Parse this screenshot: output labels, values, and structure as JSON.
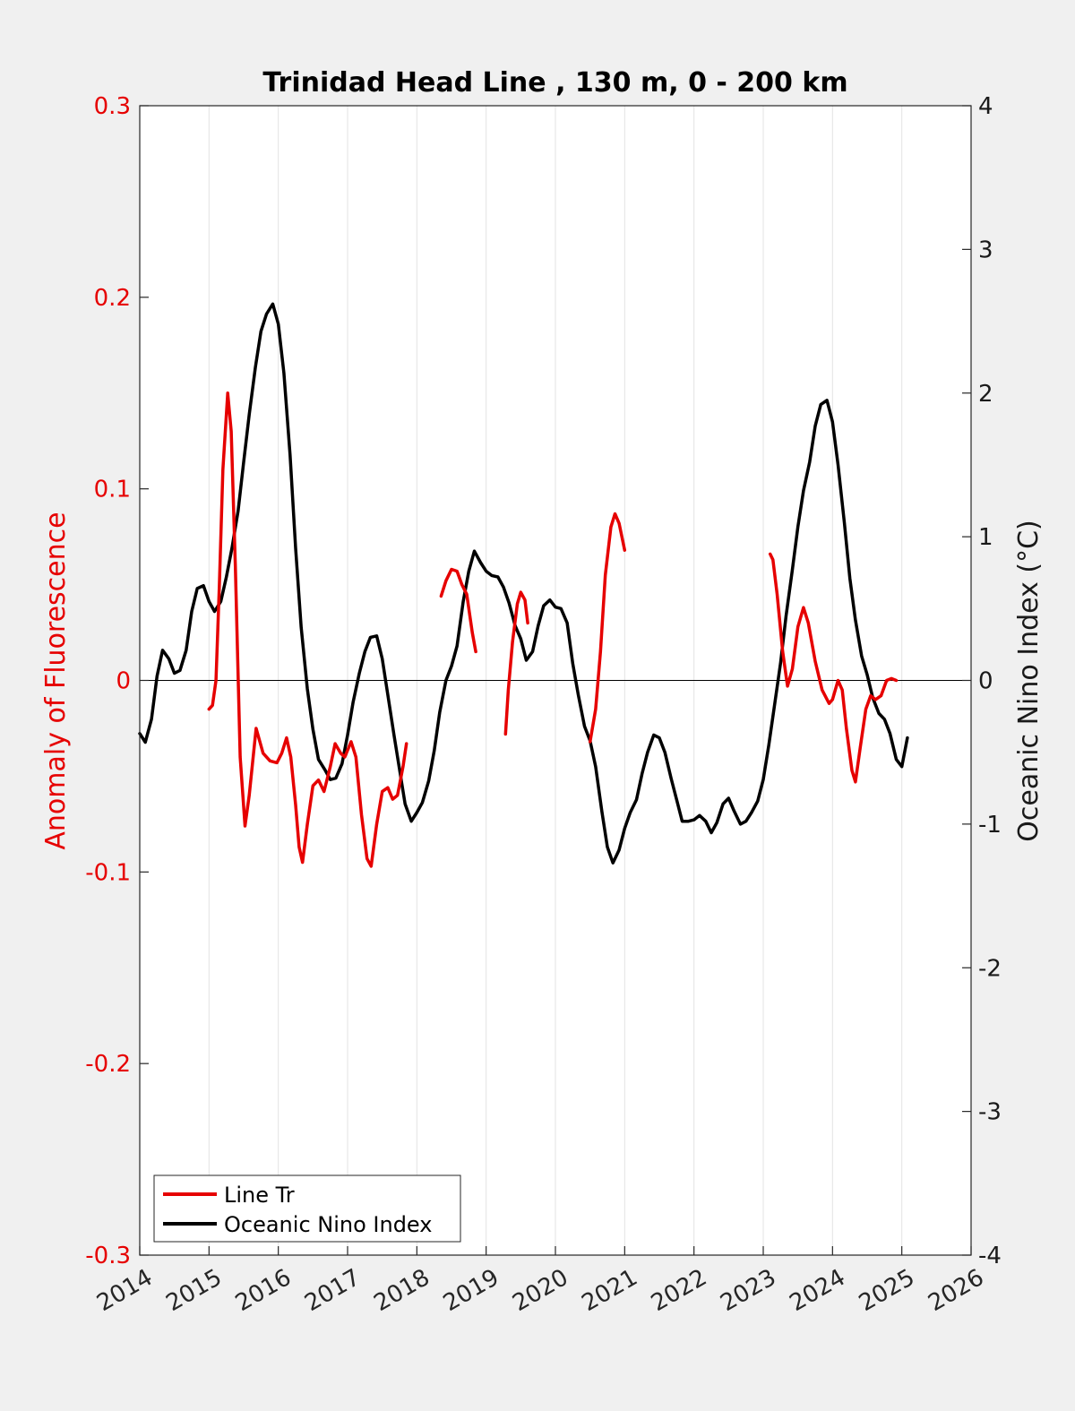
{
  "chart_data": {
    "type": "line",
    "title": "Trinidad Head Line , 130 m, 0 - 200 km",
    "xlabel": "",
    "ylabel_left": "Anomaly of Fluorescence",
    "ylabel_right": "Oceanic Nino Index (°C)",
    "xlim": [
      2014,
      2026
    ],
    "ylim_left": [
      -0.3,
      0.3
    ],
    "ylim_right": [
      -4,
      4
    ],
    "x_ticks": [
      "2014",
      "2015",
      "2016",
      "2017",
      "2018",
      "2019",
      "2020",
      "2021",
      "2022",
      "2023",
      "2024",
      "2025",
      "2026"
    ],
    "y_left_ticks": [
      "-0.3",
      "-0.2",
      "-0.1",
      "0",
      "0.1",
      "0.2",
      "0.3"
    ],
    "y_right_ticks": [
      "-4",
      "-3",
      "-2",
      "-1",
      "0",
      "1",
      "2",
      "3",
      "4"
    ],
    "grid": "vertical x-grid on",
    "zero_line": true,
    "legend": {
      "placement": "bottom-left",
      "entries": [
        "Line Tr",
        "Oceanic Nino Index"
      ]
    },
    "colors": {
      "line_tr": "#e60000",
      "oni": "#000000",
      "left_axis": "#e60000",
      "right_axis": "#1a1a1a"
    },
    "series": [
      {
        "name": "Line Tr",
        "axis": "left",
        "segments": [
          [
            [
              2015.0,
              -0.015
            ],
            [
              2015.05,
              -0.013
            ],
            [
              2015.1,
              0.0
            ],
            [
              2015.15,
              0.05
            ],
            [
              2015.2,
              0.11
            ],
            [
              2015.27,
              0.15
            ],
            [
              2015.32,
              0.13
            ],
            [
              2015.38,
              0.06
            ],
            [
              2015.45,
              -0.04
            ],
            [
              2015.52,
              -0.076
            ],
            [
              2015.58,
              -0.06
            ],
            [
              2015.68,
              -0.025
            ],
            [
              2015.78,
              -0.038
            ],
            [
              2015.88,
              -0.042
            ],
            [
              2015.98,
              -0.043
            ],
            [
              2016.05,
              -0.038
            ],
            [
              2016.12,
              -0.03
            ],
            [
              2016.18,
              -0.04
            ],
            [
              2016.25,
              -0.065
            ],
            [
              2016.3,
              -0.087
            ],
            [
              2016.35,
              -0.095
            ],
            [
              2016.42,
              -0.075
            ],
            [
              2016.5,
              -0.055
            ],
            [
              2016.58,
              -0.052
            ],
            [
              2016.66,
              -0.058
            ],
            [
              2016.75,
              -0.045
            ],
            [
              2016.82,
              -0.033
            ],
            [
              2016.9,
              -0.038
            ],
            [
              2016.96,
              -0.04
            ],
            [
              2017.05,
              -0.032
            ],
            [
              2017.12,
              -0.04
            ],
            [
              2017.2,
              -0.07
            ],
            [
              2017.28,
              -0.093
            ],
            [
              2017.34,
              -0.097
            ],
            [
              2017.42,
              -0.075
            ],
            [
              2017.5,
              -0.058
            ],
            [
              2017.58,
              -0.056
            ],
            [
              2017.65,
              -0.062
            ],
            [
              2017.72,
              -0.06
            ],
            [
              2017.8,
              -0.045
            ],
            [
              2017.85,
              -0.033
            ]
          ],
          [
            [
              2018.35,
              0.044
            ],
            [
              2018.42,
              0.052
            ],
            [
              2018.5,
              0.058
            ],
            [
              2018.58,
              0.057
            ],
            [
              2018.65,
              0.05
            ],
            [
              2018.72,
              0.045
            ],
            [
              2018.8,
              0.025
            ],
            [
              2018.85,
              0.015
            ]
          ],
          [
            [
              2019.28,
              -0.028
            ],
            [
              2019.32,
              -0.005
            ],
            [
              2019.38,
              0.02
            ],
            [
              2019.45,
              0.04
            ],
            [
              2019.5,
              0.046
            ],
            [
              2019.56,
              0.042
            ],
            [
              2019.6,
              0.03
            ]
          ],
          [
            [
              2020.5,
              -0.032
            ],
            [
              2020.58,
              -0.015
            ],
            [
              2020.65,
              0.015
            ],
            [
              2020.72,
              0.055
            ],
            [
              2020.8,
              0.08
            ],
            [
              2020.86,
              0.087
            ],
            [
              2020.92,
              0.082
            ],
            [
              2021.0,
              0.068
            ]
          ],
          [
            [
              2023.1,
              0.066
            ],
            [
              2023.14,
              0.063
            ],
            [
              2023.2,
              0.045
            ],
            [
              2023.28,
              0.015
            ],
            [
              2023.35,
              -0.003
            ],
            [
              2023.42,
              0.006
            ],
            [
              2023.5,
              0.028
            ],
            [
              2023.58,
              0.038
            ],
            [
              2023.65,
              0.03
            ],
            [
              2023.75,
              0.01
            ],
            [
              2023.85,
              -0.005
            ],
            [
              2023.95,
              -0.012
            ],
            [
              2024.0,
              -0.01
            ],
            [
              2024.08,
              0.0
            ],
            [
              2024.14,
              -0.005
            ],
            [
              2024.2,
              -0.025
            ],
            [
              2024.28,
              -0.047
            ],
            [
              2024.33,
              -0.053
            ],
            [
              2024.4,
              -0.035
            ],
            [
              2024.48,
              -0.015
            ],
            [
              2024.55,
              -0.008
            ],
            [
              2024.62,
              -0.01
            ],
            [
              2024.7,
              -0.008
            ],
            [
              2024.78,
              0.0
            ],
            [
              2024.85,
              0.001
            ],
            [
              2024.92,
              0.0
            ]
          ]
        ]
      },
      {
        "name": "Oceanic Nino Index",
        "axis": "right",
        "segments": [
          [
            [
              2014.0,
              -0.37
            ],
            [
              2014.08,
              -0.43
            ],
            [
              2014.17,
              -0.27
            ],
            [
              2014.25,
              0.03
            ],
            [
              2014.33,
              0.21
            ],
            [
              2014.42,
              0.15
            ],
            [
              2014.5,
              0.05
            ],
            [
              2014.58,
              0.07
            ],
            [
              2014.67,
              0.21
            ],
            [
              2014.75,
              0.48
            ],
            [
              2014.83,
              0.64
            ],
            [
              2014.92,
              0.66
            ],
            [
              2015.0,
              0.55
            ],
            [
              2015.08,
              0.48
            ],
            [
              2015.17,
              0.55
            ],
            [
              2015.25,
              0.72
            ],
            [
              2015.33,
              0.92
            ],
            [
              2015.42,
              1.18
            ],
            [
              2015.5,
              1.52
            ],
            [
              2015.58,
              1.85
            ],
            [
              2015.67,
              2.18
            ],
            [
              2015.75,
              2.43
            ],
            [
              2015.83,
              2.55
            ],
            [
              2015.92,
              2.62
            ],
            [
              2016.0,
              2.48
            ],
            [
              2016.08,
              2.14
            ],
            [
              2016.17,
              1.57
            ],
            [
              2016.25,
              0.92
            ],
            [
              2016.33,
              0.37
            ],
            [
              2016.42,
              -0.06
            ],
            [
              2016.5,
              -0.34
            ],
            [
              2016.58,
              -0.55
            ],
            [
              2016.67,
              -0.62
            ],
            [
              2016.75,
              -0.69
            ],
            [
              2016.83,
              -0.68
            ],
            [
              2016.92,
              -0.58
            ],
            [
              2017.0,
              -0.38
            ],
            [
              2017.08,
              -0.15
            ],
            [
              2017.17,
              0.05
            ],
            [
              2017.25,
              0.2
            ],
            [
              2017.33,
              0.3
            ],
            [
              2017.42,
              0.31
            ],
            [
              2017.5,
              0.15
            ],
            [
              2017.58,
              -0.1
            ],
            [
              2017.67,
              -0.38
            ],
            [
              2017.75,
              -0.62
            ],
            [
              2017.83,
              -0.86
            ],
            [
              2017.92,
              -0.98
            ],
            [
              2018.0,
              -0.92
            ],
            [
              2018.08,
              -0.85
            ],
            [
              2018.17,
              -0.7
            ],
            [
              2018.25,
              -0.49
            ],
            [
              2018.33,
              -0.22
            ],
            [
              2018.42,
              0.0
            ],
            [
              2018.5,
              0.1
            ],
            [
              2018.58,
              0.24
            ],
            [
              2018.67,
              0.55
            ],
            [
              2018.75,
              0.76
            ],
            [
              2018.83,
              0.9
            ],
            [
              2018.92,
              0.82
            ],
            [
              2019.0,
              0.76
            ],
            [
              2019.08,
              0.73
            ],
            [
              2019.17,
              0.72
            ],
            [
              2019.25,
              0.65
            ],
            [
              2019.33,
              0.54
            ],
            [
              2019.42,
              0.38
            ],
            [
              2019.5,
              0.29
            ],
            [
              2019.58,
              0.14
            ],
            [
              2019.67,
              0.2
            ],
            [
              2019.75,
              0.38
            ],
            [
              2019.83,
              0.52
            ],
            [
              2019.92,
              0.56
            ],
            [
              2020.0,
              0.51
            ],
            [
              2020.08,
              0.5
            ],
            [
              2020.17,
              0.4
            ],
            [
              2020.25,
              0.12
            ],
            [
              2020.33,
              -0.1
            ],
            [
              2020.42,
              -0.32
            ],
            [
              2020.5,
              -0.42
            ],
            [
              2020.58,
              -0.6
            ],
            [
              2020.67,
              -0.91
            ],
            [
              2020.75,
              -1.16
            ],
            [
              2020.83,
              -1.27
            ],
            [
              2020.92,
              -1.18
            ],
            [
              2021.0,
              -1.03
            ],
            [
              2021.08,
              -0.92
            ],
            [
              2021.17,
              -0.83
            ],
            [
              2021.25,
              -0.65
            ],
            [
              2021.33,
              -0.5
            ],
            [
              2021.42,
              -0.38
            ],
            [
              2021.5,
              -0.4
            ],
            [
              2021.58,
              -0.5
            ],
            [
              2021.67,
              -0.68
            ],
            [
              2021.75,
              -0.83
            ],
            [
              2021.83,
              -0.98
            ],
            [
              2021.92,
              -0.98
            ],
            [
              2022.0,
              -0.97
            ],
            [
              2022.08,
              -0.94
            ],
            [
              2022.17,
              -0.98
            ],
            [
              2022.25,
              -1.06
            ],
            [
              2022.33,
              -0.99
            ],
            [
              2022.42,
              -0.86
            ],
            [
              2022.5,
              -0.82
            ],
            [
              2022.58,
              -0.91
            ],
            [
              2022.67,
              -1.0
            ],
            [
              2022.75,
              -0.98
            ],
            [
              2022.83,
              -0.92
            ],
            [
              2022.92,
              -0.84
            ],
            [
              2023.0,
              -0.69
            ],
            [
              2023.08,
              -0.45
            ],
            [
              2023.17,
              -0.15
            ],
            [
              2023.25,
              0.12
            ],
            [
              2023.33,
              0.45
            ],
            [
              2023.42,
              0.77
            ],
            [
              2023.5,
              1.07
            ],
            [
              2023.58,
              1.32
            ],
            [
              2023.67,
              1.52
            ],
            [
              2023.75,
              1.77
            ],
            [
              2023.83,
              1.92
            ],
            [
              2023.92,
              1.95
            ],
            [
              2024.0,
              1.8
            ],
            [
              2024.08,
              1.5
            ],
            [
              2024.17,
              1.1
            ],
            [
              2024.25,
              0.71
            ],
            [
              2024.33,
              0.42
            ],
            [
              2024.42,
              0.17
            ],
            [
              2024.5,
              0.04
            ],
            [
              2024.58,
              -0.12
            ],
            [
              2024.67,
              -0.23
            ],
            [
              2024.75,
              -0.27
            ],
            [
              2024.83,
              -0.37
            ],
            [
              2024.92,
              -0.55
            ],
            [
              2025.0,
              -0.6
            ],
            [
              2025.08,
              -0.4
            ]
          ]
        ]
      }
    ]
  }
}
